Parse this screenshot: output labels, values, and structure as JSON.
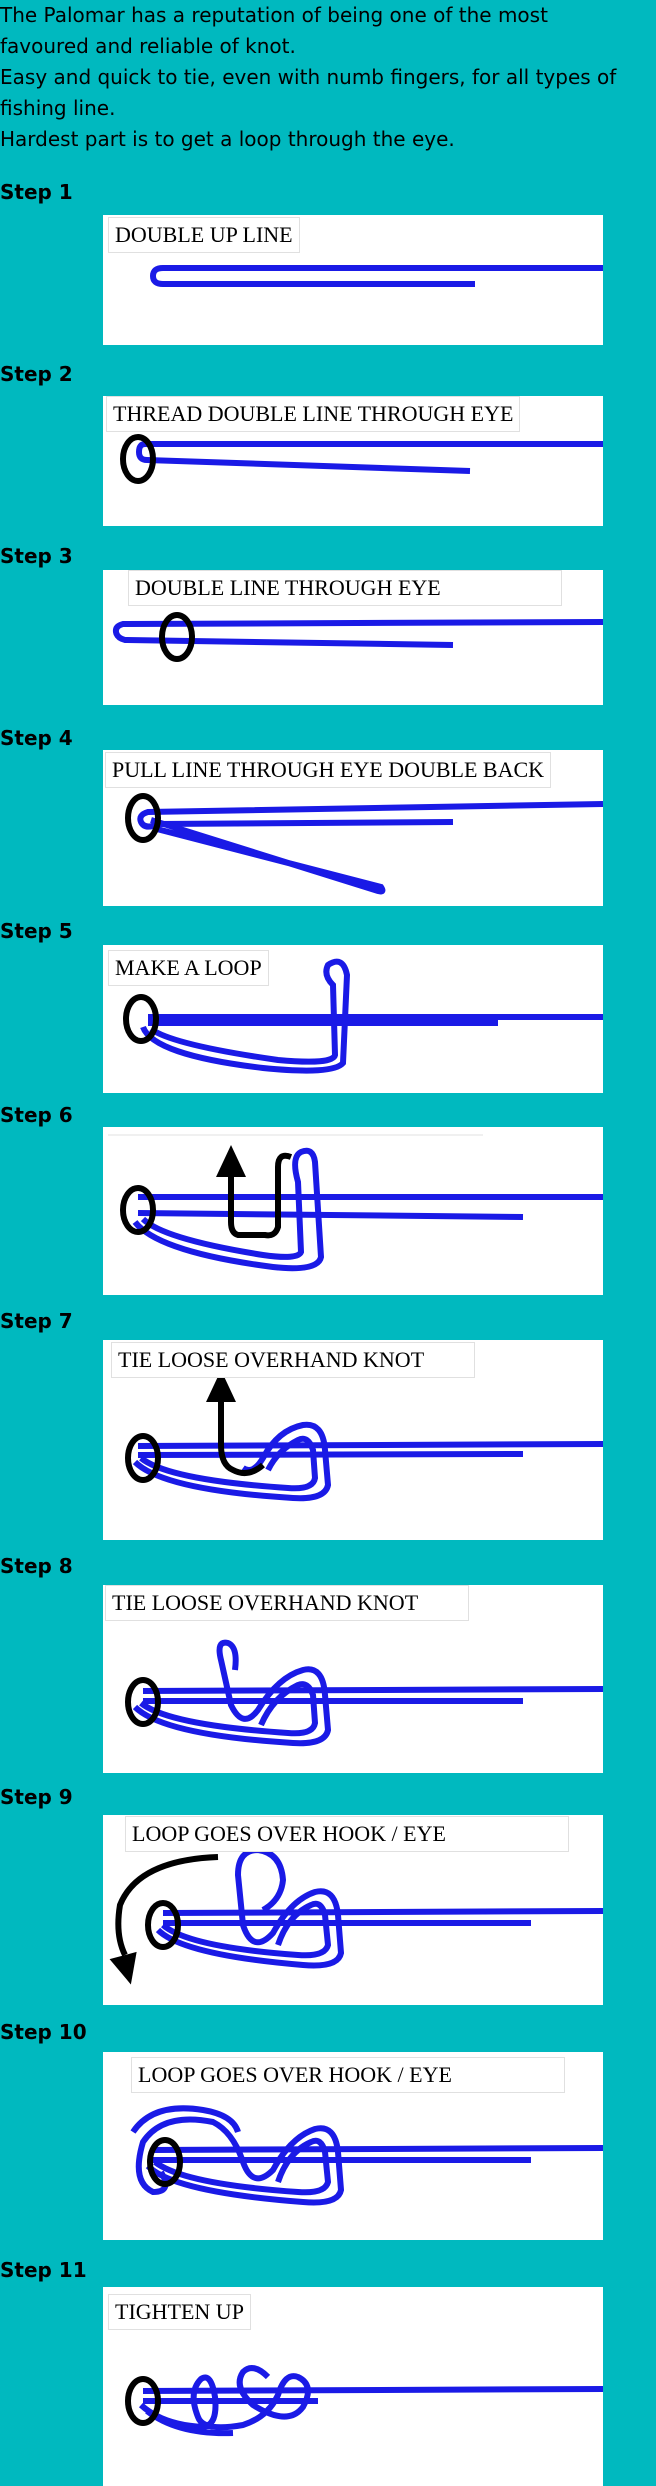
{
  "intro": {
    "line1": "The Palomar has a reputation of being one of the most",
    "line2": "favoured and reliable of knot.",
    "line3": "Easy and quick to tie, even with numb fingers, for all types of",
    "line4": "fishing line.",
    "line5": "Hardest part is to get a loop through the eye."
  },
  "steps": [
    {
      "label": "Step 1",
      "caption": "DOUBLE UP LINE"
    },
    {
      "label": "Step 2",
      "caption": "THREAD DOUBLE LINE THROUGH EYE"
    },
    {
      "label": "Step 3",
      "caption": "DOUBLE LINE THROUGH EYE"
    },
    {
      "label": "Step 4",
      "caption": "PULL LINE THROUGH EYE DOUBLE BACK"
    },
    {
      "label": "Step 5",
      "caption": "MAKE A LOOP"
    },
    {
      "label": "Step 6",
      "caption": ""
    },
    {
      "label": "Step 7",
      "caption": "TIE LOOSE OVERHAND KNOT"
    },
    {
      "label": "Step 8",
      "caption": "TIE LOOSE OVERHAND KNOT"
    },
    {
      "label": "Step 9",
      "caption": "LOOP GOES OVER HOOK / EYE"
    },
    {
      "label": "Step 10",
      "caption": "LOOP GOES OVER HOOK / EYE"
    },
    {
      "label": "Step 11",
      "caption": "TIGHTEN UP"
    }
  ],
  "colors": {
    "background": "#00b9bf",
    "line": "#1a1ae6",
    "eye": "#000000"
  }
}
